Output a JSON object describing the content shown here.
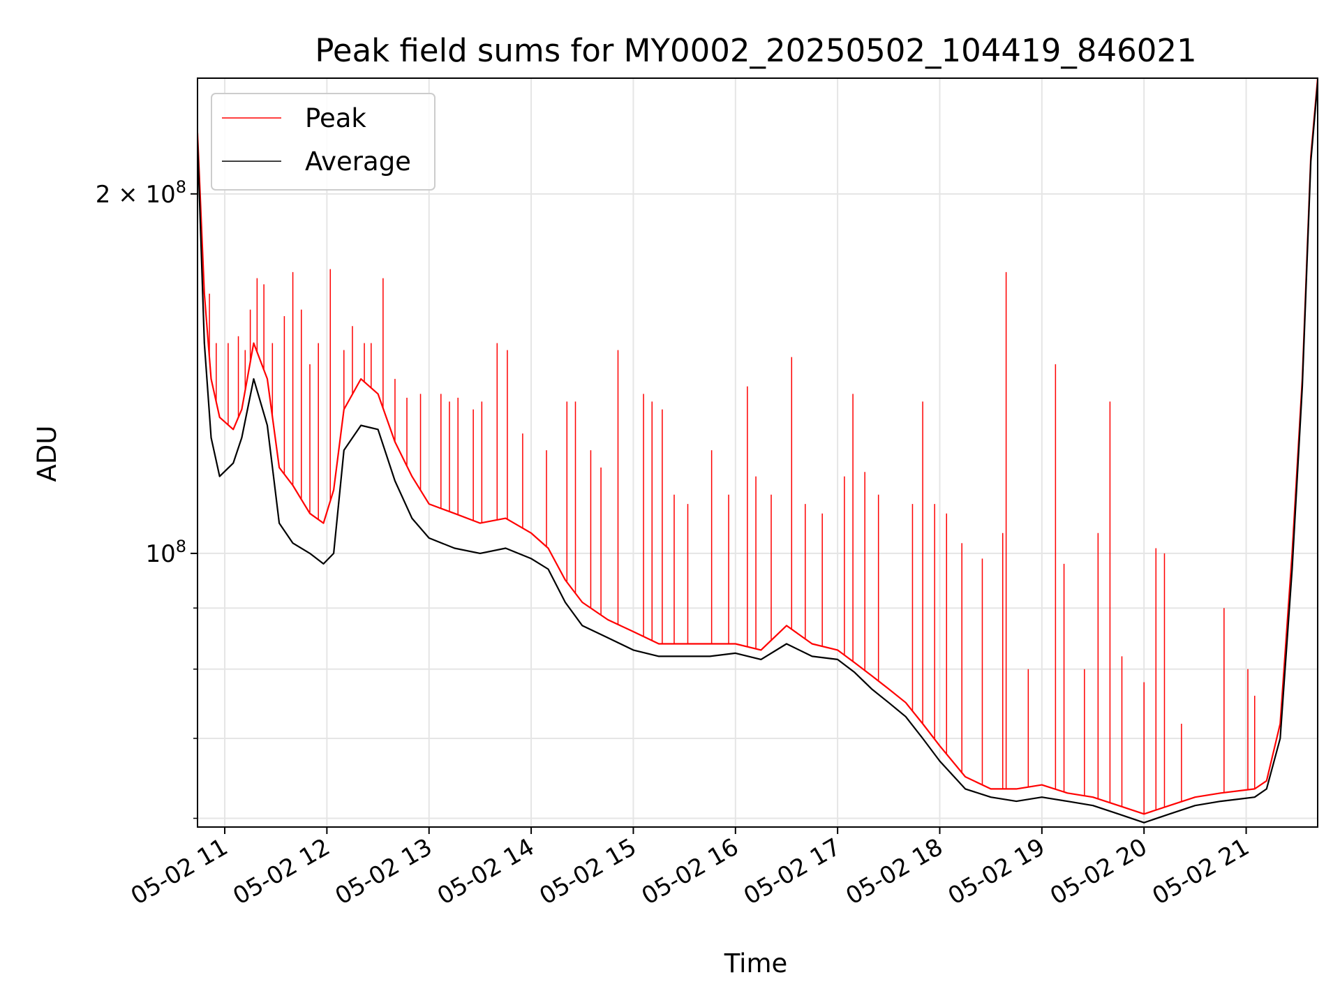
{
  "chart_data": {
    "type": "line",
    "title": "Peak field sums for MY0002_20250502_104419_846021",
    "xlabel": "Time",
    "ylabel": "ADU",
    "yscale": "log",
    "xlim": [
      "2025-05-02 10:44",
      "2025-05-02 21:42"
    ],
    "ylim": [
      59000000,
      250000000
    ],
    "grid": true,
    "legend": "top-left",
    "x_ticks": [
      {
        "t": "2025-05-02 11:00",
        "label": "05-02 11"
      },
      {
        "t": "2025-05-02 12:00",
        "label": "05-02 12"
      },
      {
        "t": "2025-05-02 13:00",
        "label": "05-02 13"
      },
      {
        "t": "2025-05-02 14:00",
        "label": "05-02 14"
      },
      {
        "t": "2025-05-02 15:00",
        "label": "05-02 15"
      },
      {
        "t": "2025-05-02 16:00",
        "label": "05-02 16"
      },
      {
        "t": "2025-05-02 17:00",
        "label": "05-02 17"
      },
      {
        "t": "2025-05-02 18:00",
        "label": "05-02 18"
      },
      {
        "t": "2025-05-02 19:00",
        "label": "05-02 19"
      },
      {
        "t": "2025-05-02 20:00",
        "label": "05-02 20"
      },
      {
        "t": "2025-05-02 21:00",
        "label": "05-02 21"
      }
    ],
    "y_major_ticks": [
      {
        "value": 100000000,
        "base": "10",
        "exp": "8"
      },
      {
        "value": 200000000,
        "base": "2 × 10",
        "exp": "8"
      }
    ],
    "y_minor_ticks": [
      60000000,
      70000000,
      80000000,
      90000000
    ],
    "series": [
      {
        "name": "Peak",
        "color": "#ff0000",
        "x": [
          "2025-05-02 10:44",
          "2025-05-02 10:48",
          "2025-05-02 10:52",
          "2025-05-02 10:57",
          "2025-05-02 11:05",
          "2025-05-02 11:10",
          "2025-05-02 11:17",
          "2025-05-02 11:25",
          "2025-05-02 11:32",
          "2025-05-02 11:40",
          "2025-05-02 11:50",
          "2025-05-02 11:58",
          "2025-05-02 12:04",
          "2025-05-02 12:10",
          "2025-05-02 12:20",
          "2025-05-02 12:30",
          "2025-05-02 12:40",
          "2025-05-02 12:50",
          "2025-05-02 13:00",
          "2025-05-02 13:15",
          "2025-05-02 13:30",
          "2025-05-02 13:45",
          "2025-05-02 14:00",
          "2025-05-02 14:10",
          "2025-05-02 14:20",
          "2025-05-02 14:30",
          "2025-05-02 14:45",
          "2025-05-02 15:00",
          "2025-05-02 15:15",
          "2025-05-02 15:30",
          "2025-05-02 15:45",
          "2025-05-02 16:00",
          "2025-05-02 16:15",
          "2025-05-02 16:30",
          "2025-05-02 16:45",
          "2025-05-02 17:00",
          "2025-05-02 17:10",
          "2025-05-02 17:20",
          "2025-05-02 17:30",
          "2025-05-02 17:40",
          "2025-05-02 17:50",
          "2025-05-02 18:00",
          "2025-05-02 18:15",
          "2025-05-02 18:30",
          "2025-05-02 18:45",
          "2025-05-02 19:00",
          "2025-05-02 19:15",
          "2025-05-02 19:30",
          "2025-05-02 19:45",
          "2025-05-02 20:00",
          "2025-05-02 20:15",
          "2025-05-02 20:30",
          "2025-05-02 20:45",
          "2025-05-02 21:05",
          "2025-05-02 21:12",
          "2025-05-02 21:20",
          "2025-05-02 21:27",
          "2025-05-02 21:33",
          "2025-05-02 21:38",
          "2025-05-02 21:42"
        ],
        "y": [
          225000000,
          165000000,
          140000000,
          130000000,
          127000000,
          132000000,
          150000000,
          140000000,
          118000000,
          114000000,
          108000000,
          106000000,
          113000000,
          132000000,
          140000000,
          136000000,
          124000000,
          116000000,
          110000000,
          108000000,
          106000000,
          107000000,
          104000000,
          101000000,
          95000000,
          91000000,
          88000000,
          86000000,
          84000000,
          84000000,
          84000000,
          84000000,
          83000000,
          87000000,
          84000000,
          83000000,
          81000000,
          79000000,
          77000000,
          75000000,
          72000000,
          69000000,
          65000000,
          63500000,
          63500000,
          64000000,
          63000000,
          62500000,
          61500000,
          60500000,
          61500000,
          62500000,
          63000000,
          63500000,
          64500000,
          72000000,
          100000000,
          140000000,
          215000000,
          250000000
        ]
      },
      {
        "name": "Average",
        "color": "#000000",
        "x": [
          "2025-05-02 10:44",
          "2025-05-02 10:48",
          "2025-05-02 10:52",
          "2025-05-02 10:57",
          "2025-05-02 11:05",
          "2025-05-02 11:10",
          "2025-05-02 11:17",
          "2025-05-02 11:25",
          "2025-05-02 11:32",
          "2025-05-02 11:40",
          "2025-05-02 11:50",
          "2025-05-02 11:58",
          "2025-05-02 12:04",
          "2025-05-02 12:10",
          "2025-05-02 12:20",
          "2025-05-02 12:30",
          "2025-05-02 12:40",
          "2025-05-02 12:50",
          "2025-05-02 13:00",
          "2025-05-02 13:15",
          "2025-05-02 13:30",
          "2025-05-02 13:45",
          "2025-05-02 14:00",
          "2025-05-02 14:10",
          "2025-05-02 14:20",
          "2025-05-02 14:30",
          "2025-05-02 14:45",
          "2025-05-02 15:00",
          "2025-05-02 15:15",
          "2025-05-02 15:30",
          "2025-05-02 15:45",
          "2025-05-02 16:00",
          "2025-05-02 16:15",
          "2025-05-02 16:30",
          "2025-05-02 16:45",
          "2025-05-02 17:00",
          "2025-05-02 17:10",
          "2025-05-02 17:20",
          "2025-05-02 17:30",
          "2025-05-02 17:40",
          "2025-05-02 17:50",
          "2025-05-02 18:00",
          "2025-05-02 18:15",
          "2025-05-02 18:30",
          "2025-05-02 18:45",
          "2025-05-02 19:00",
          "2025-05-02 19:15",
          "2025-05-02 19:30",
          "2025-05-02 19:45",
          "2025-05-02 20:00",
          "2025-05-02 20:15",
          "2025-05-02 20:30",
          "2025-05-02 20:45",
          "2025-05-02 21:05",
          "2025-05-02 21:12",
          "2025-05-02 21:20",
          "2025-05-02 21:27",
          "2025-05-02 21:33",
          "2025-05-02 21:38",
          "2025-05-02 21:42"
        ],
        "y": [
          222000000,
          150000000,
          125000000,
          116000000,
          119000000,
          125000000,
          140000000,
          128000000,
          106000000,
          102000000,
          100000000,
          98000000,
          100000000,
          122000000,
          128000000,
          127000000,
          115000000,
          107000000,
          103000000,
          101000000,
          100000000,
          101000000,
          99000000,
          97000000,
          91000000,
          87000000,
          85000000,
          83000000,
          82000000,
          82000000,
          82000000,
          82500000,
          81500000,
          84000000,
          82000000,
          81500000,
          79500000,
          77000000,
          75000000,
          73000000,
          70000000,
          67000000,
          63500000,
          62500000,
          62000000,
          62500000,
          62000000,
          61500000,
          60500000,
          59500000,
          60500000,
          61500000,
          62000000,
          62500000,
          63500000,
          70000000,
          97000000,
          138000000,
          213000000,
          248000000
        ]
      }
    ],
    "peak_spikes": [
      {
        "t": "2025-05-02 10:51",
        "y": 165000000
      },
      {
        "t": "2025-05-02 10:55",
        "y": 150000000
      },
      {
        "t": "2025-05-02 11:02",
        "y": 150000000
      },
      {
        "t": "2025-05-02 11:08",
        "y": 152000000
      },
      {
        "t": "2025-05-02 11:12",
        "y": 148000000
      },
      {
        "t": "2025-05-02 11:15",
        "y": 160000000
      },
      {
        "t": "2025-05-02 11:19",
        "y": 170000000
      },
      {
        "t": "2025-05-02 11:23",
        "y": 168000000
      },
      {
        "t": "2025-05-02 11:28",
        "y": 150000000
      },
      {
        "t": "2025-05-02 11:35",
        "y": 158000000
      },
      {
        "t": "2025-05-02 11:40",
        "y": 172000000
      },
      {
        "t": "2025-05-02 11:45",
        "y": 160000000
      },
      {
        "t": "2025-05-02 11:50",
        "y": 144000000
      },
      {
        "t": "2025-05-02 11:55",
        "y": 150000000
      },
      {
        "t": "2025-05-02 12:02",
        "y": 173000000
      },
      {
        "t": "2025-05-02 12:10",
        "y": 148000000
      },
      {
        "t": "2025-05-02 12:15",
        "y": 155000000
      },
      {
        "t": "2025-05-02 12:22",
        "y": 150000000
      },
      {
        "t": "2025-05-02 12:26",
        "y": 150000000
      },
      {
        "t": "2025-05-02 12:33",
        "y": 170000000
      },
      {
        "t": "2025-05-02 12:40",
        "y": 140000000
      },
      {
        "t": "2025-05-02 12:47",
        "y": 135000000
      },
      {
        "t": "2025-05-02 12:55",
        "y": 136000000
      },
      {
        "t": "2025-05-02 13:07",
        "y": 136000000
      },
      {
        "t": "2025-05-02 13:12",
        "y": 134000000
      },
      {
        "t": "2025-05-02 13:17",
        "y": 135000000
      },
      {
        "t": "2025-05-02 13:26",
        "y": 132000000
      },
      {
        "t": "2025-05-02 13:31",
        "y": 134000000
      },
      {
        "t": "2025-05-02 13:40",
        "y": 150000000
      },
      {
        "t": "2025-05-02 13:46",
        "y": 148000000
      },
      {
        "t": "2025-05-02 13:55",
        "y": 126000000
      },
      {
        "t": "2025-05-02 14:09",
        "y": 122000000
      },
      {
        "t": "2025-05-02 14:21",
        "y": 134000000
      },
      {
        "t": "2025-05-02 14:26",
        "y": 134000000
      },
      {
        "t": "2025-05-02 14:35",
        "y": 122000000
      },
      {
        "t": "2025-05-02 14:41",
        "y": 118000000
      },
      {
        "t": "2025-05-02 14:51",
        "y": 148000000
      },
      {
        "t": "2025-05-02 15:06",
        "y": 136000000
      },
      {
        "t": "2025-05-02 15:11",
        "y": 134000000
      },
      {
        "t": "2025-05-02 15:17",
        "y": 132000000
      },
      {
        "t": "2025-05-02 15:24",
        "y": 112000000
      },
      {
        "t": "2025-05-02 15:32",
        "y": 110000000
      },
      {
        "t": "2025-05-02 15:46",
        "y": 122000000
      },
      {
        "t": "2025-05-02 15:56",
        "y": 112000000
      },
      {
        "t": "2025-05-02 16:07",
        "y": 138000000
      },
      {
        "t": "2025-05-02 16:12",
        "y": 116000000
      },
      {
        "t": "2025-05-02 16:21",
        "y": 112000000
      },
      {
        "t": "2025-05-02 16:33",
        "y": 146000000
      },
      {
        "t": "2025-05-02 16:41",
        "y": 110000000
      },
      {
        "t": "2025-05-02 16:51",
        "y": 108000000
      },
      {
        "t": "2025-05-02 17:04",
        "y": 116000000
      },
      {
        "t": "2025-05-02 17:09",
        "y": 136000000
      },
      {
        "t": "2025-05-02 17:16",
        "y": 117000000
      },
      {
        "t": "2025-05-02 17:24",
        "y": 112000000
      },
      {
        "t": "2025-05-02 17:44",
        "y": 110000000
      },
      {
        "t": "2025-05-02 17:50",
        "y": 134000000
      },
      {
        "t": "2025-05-02 17:57",
        "y": 110000000
      },
      {
        "t": "2025-05-02 18:04",
        "y": 108000000
      },
      {
        "t": "2025-05-02 18:13",
        "y": 102000000
      },
      {
        "t": "2025-05-02 18:25",
        "y": 99000000
      },
      {
        "t": "2025-05-02 18:37",
        "y": 104000000
      },
      {
        "t": "2025-05-02 18:39",
        "y": 172000000
      },
      {
        "t": "2025-05-02 18:52",
        "y": 80000000
      },
      {
        "t": "2025-05-02 19:08",
        "y": 144000000
      },
      {
        "t": "2025-05-02 19:13",
        "y": 98000000
      },
      {
        "t": "2025-05-02 19:25",
        "y": 80000000
      },
      {
        "t": "2025-05-02 19:33",
        "y": 104000000
      },
      {
        "t": "2025-05-02 19:40",
        "y": 134000000
      },
      {
        "t": "2025-05-02 19:47",
        "y": 82000000
      },
      {
        "t": "2025-05-02 20:00",
        "y": 78000000
      },
      {
        "t": "2025-05-02 20:07",
        "y": 101000000
      },
      {
        "t": "2025-05-02 20:12",
        "y": 100000000
      },
      {
        "t": "2025-05-02 20:22",
        "y": 72000000
      },
      {
        "t": "2025-05-02 20:47",
        "y": 90000000
      },
      {
        "t": "2025-05-02 21:01",
        "y": 80000000
      },
      {
        "t": "2025-05-02 21:05",
        "y": 76000000
      }
    ]
  }
}
